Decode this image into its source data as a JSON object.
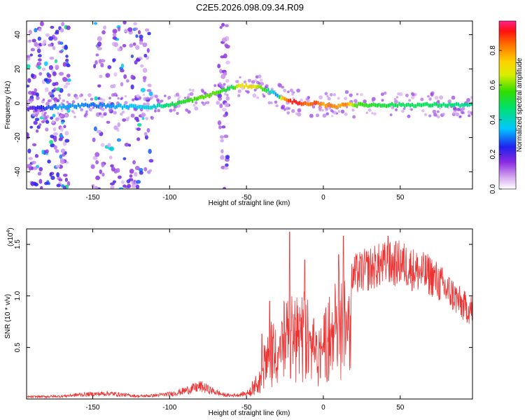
{
  "figure": {
    "title": "C2E5.2026.098.09.34.R09"
  },
  "chart_data": [
    {
      "type": "heatmap",
      "name": "spectrogram",
      "title": "C2E5.2026.098.09.34.R09",
      "xlabel": "Height of straight line (km)",
      "ylabel": "Frequency (Hz)",
      "xlim": [
        -193,
        97
      ],
      "ylim": [
        -50,
        48
      ],
      "xticks": [
        -150,
        -100,
        -50,
        0,
        50
      ],
      "yticks": [
        -40,
        -20,
        0,
        20,
        40
      ],
      "colorbar": {
        "label": "Normalized spectral amplitude",
        "range": [
          0,
          0.97
        ],
        "ticks": [
          0.0,
          0.2,
          0.4,
          0.6,
          0.8
        ],
        "tick_labels": [
          "0.0",
          "0.2",
          "0.4",
          "0.6",
          "0.8"
        ]
      },
      "ridge": {
        "x": [
          -190,
          -170,
          -150,
          -130,
          -110,
          -100,
          -90,
          -80,
          -70,
          -60,
          -55,
          -50,
          -45,
          -40,
          -35,
          -30,
          -27,
          -22,
          -18,
          -14,
          -10,
          -5,
          0,
          5,
          10,
          15,
          20,
          30,
          50,
          70,
          95
        ],
        "freq": [
          -3,
          -2,
          -1,
          -2,
          -2,
          -1,
          1,
          3,
          6,
          9,
          10,
          10,
          10,
          9,
          7,
          5,
          3,
          1,
          1,
          0,
          -1,
          0,
          -1,
          -1,
          -2,
          0,
          -1,
          -1,
          -1,
          -1,
          -1
        ],
        "amplitude": [
          0.2,
          0.35,
          0.3,
          0.35,
          0.4,
          0.5,
          0.55,
          0.6,
          0.6,
          0.5,
          0.7,
          0.75,
          0.7,
          0.6,
          0.45,
          0.3,
          0.75,
          0.92,
          0.95,
          0.9,
          0.85,
          0.9,
          0.8,
          0.85,
          0.8,
          0.85,
          0.6,
          0.55,
          0.5,
          0.5,
          0.45
        ]
      }
    },
    {
      "type": "line",
      "name": "snr",
      "xlabel": "Height of straight line (km)",
      "ylabel": "SNR (10 * v/v)",
      "yscale_label": "(x10",
      "yscale_exp": "4",
      "yscale_close": ")",
      "xlim": [
        -193,
        97
      ],
      "ylim": [
        0,
        1.65
      ],
      "xticks": [
        -150,
        -100,
        -50,
        0,
        50
      ],
      "yticks": [
        0.5,
        1.0,
        1.5
      ],
      "ytick_labels": [
        "0.5",
        "1.0",
        "1.5"
      ],
      "series": [
        {
          "name": "SNR",
          "color": "#ee3333",
          "envelope_x": [
            -193,
            -170,
            -160,
            -150,
            -140,
            -130,
            -120,
            -110,
            -100,
            -95,
            -90,
            -85,
            -80,
            -75,
            -70,
            -65,
            -60,
            -55,
            -50,
            -47,
            -45,
            -42,
            -40,
            -38,
            -35,
            -32,
            -30,
            -27,
            -25,
            -22,
            -20,
            -18,
            -15,
            -12,
            -10,
            -7,
            -5,
            -3,
            0,
            3,
            5,
            8,
            10,
            12,
            15,
            18,
            20,
            25,
            30,
            35,
            40,
            45,
            50,
            55,
            60,
            65,
            70,
            75,
            80,
            85,
            90,
            95
          ],
          "envelope_y": [
            0.03,
            0.04,
            0.06,
            0.07,
            0.08,
            0.06,
            0.04,
            0.05,
            0.07,
            0.09,
            0.12,
            0.15,
            0.18,
            0.14,
            0.1,
            0.06,
            0.05,
            0.06,
            0.08,
            0.12,
            0.22,
            0.3,
            0.38,
            0.55,
            0.7,
            0.75,
            0.8,
            0.9,
            0.95,
            1.0,
            0.95,
            1.05,
            1.0,
            1.0,
            0.95,
            0.85,
            0.8,
            0.78,
            0.8,
            0.9,
            1.05,
            1.1,
            1.15,
            1.2,
            1.25,
            1.32,
            1.38,
            1.42,
            1.45,
            1.48,
            1.5,
            1.5,
            1.52,
            1.48,
            1.43,
            1.4,
            1.38,
            1.3,
            1.22,
            1.15,
            1.05,
            1.0
          ],
          "spikes": [
            {
              "x": -22,
              "y": 1.62
            },
            {
              "x": 13,
              "y": 1.58
            },
            {
              "x": -40,
              "y": 0.63
            },
            {
              "x": -35,
              "y": 0.95
            },
            {
              "x": 10,
              "y": 1.4
            },
            {
              "x": -12,
              "y": 1.35
            },
            {
              "x": 42,
              "y": 1.58
            }
          ]
        }
      ]
    }
  ]
}
